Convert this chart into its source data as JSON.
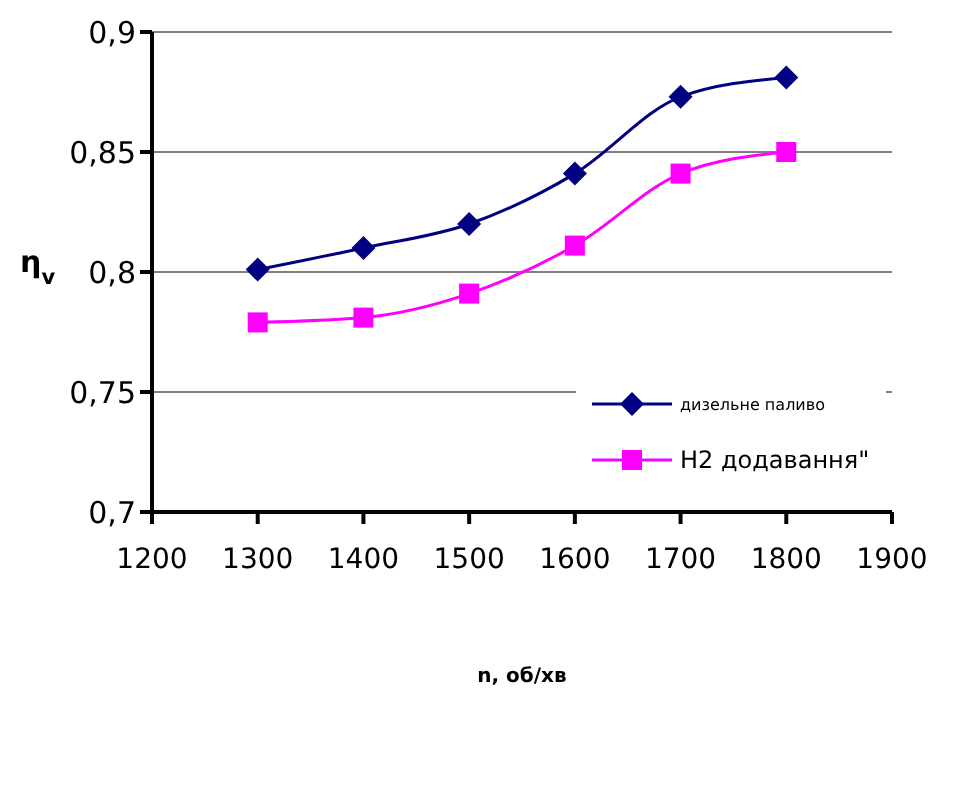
{
  "chart_data": {
    "type": "line",
    "xlabel": "n, об/хв",
    "ylabel": "η$_{v}$",
    "x": [
      1300,
      1400,
      1500,
      1600,
      1700,
      1800
    ],
    "series": [
      {
        "name": "дизельне паливо",
        "color": "#000080",
        "marker": "diamond",
        "values": [
          0.801,
          0.81,
          0.82,
          0.841,
          0.873,
          0.881
        ]
      },
      {
        "name": "Н2 додавання\"",
        "color": "#ff00ff",
        "marker": "square",
        "values": [
          0.779,
          0.781,
          0.791,
          0.811,
          0.841,
          0.85
        ]
      }
    ],
    "xlim": [
      1200,
      1900
    ],
    "xticks": [
      1200,
      1300,
      1400,
      1500,
      1600,
      1700,
      1800,
      1900
    ],
    "ylim": [
      0.7,
      0.9
    ],
    "yticks": [
      {
        "value": 0.7,
        "label": "0,7"
      },
      {
        "value": 0.75,
        "label": "0,75"
      },
      {
        "value": 0.8,
        "label": "0,8"
      },
      {
        "value": 0.85,
        "label": "0,85"
      },
      {
        "value": 0.9,
        "label": "0,9"
      }
    ],
    "grid": "y",
    "legend": "right"
  }
}
